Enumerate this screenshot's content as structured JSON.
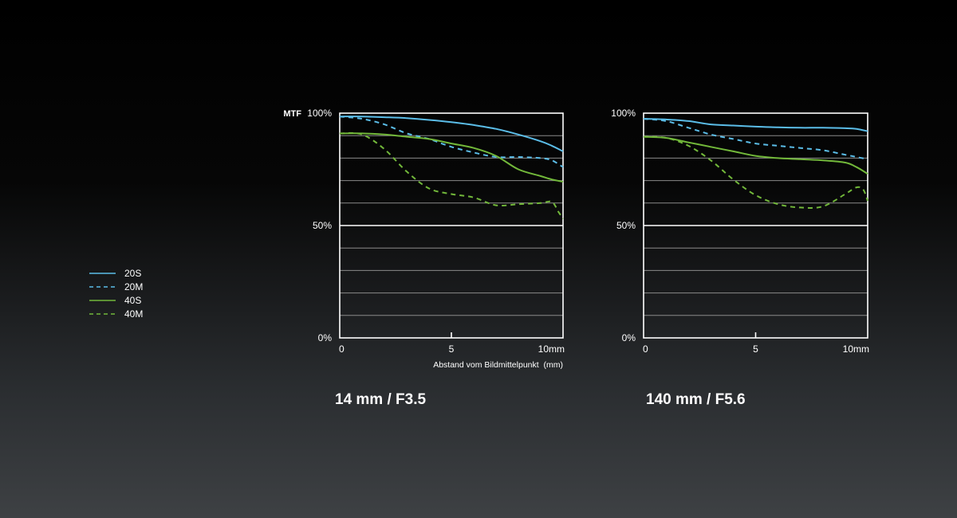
{
  "colors": {
    "sagittal_20": "#5bbde8",
    "meridional_20": "#5bbde8",
    "sagittal_40": "#72b83a",
    "meridional_40": "#72b83a",
    "grid": "#8a8a8a",
    "frame": "#ffffff"
  },
  "legend": {
    "items": [
      {
        "label": "20S",
        "series": "20S",
        "dashed": false,
        "color": "#5bbde8"
      },
      {
        "label": "20M",
        "series": "20M",
        "dashed": true,
        "color": "#5bbde8"
      },
      {
        "label": "40S",
        "series": "40S",
        "dashed": false,
        "color": "#72b83a"
      },
      {
        "label": "40M",
        "series": "40M",
        "dashed": true,
        "color": "#72b83a"
      }
    ]
  },
  "chart_data": [
    {
      "type": "line",
      "title": "14 mm / F3.5",
      "ylabel": "MTF",
      "xlabel": "Abstand vom Bildmittelpunkt  (mm)",
      "xlim": [
        0,
        10
      ],
      "ylim": [
        0,
        100
      ],
      "x_ticks": [
        {
          "value": 0,
          "label": "0"
        },
        {
          "value": 5,
          "label": "5"
        },
        {
          "value": 10,
          "label": "10mm"
        }
      ],
      "y_ticks": [
        {
          "value": 0,
          "label": "0%"
        },
        {
          "value": 50,
          "label": "50%"
        },
        {
          "value": 100,
          "label": "100%"
        }
      ],
      "grid": true,
      "series": [
        {
          "name": "20S",
          "dashed": false,
          "color": "#5bbde8",
          "x": [
            0,
            1,
            2,
            3,
            4,
            5,
            6,
            7,
            8,
            9,
            9.5,
            10
          ],
          "y": [
            98.5,
            98.5,
            98.2,
            97.8,
            97,
            96,
            94.7,
            93,
            90.5,
            87.5,
            85.5,
            83
          ]
        },
        {
          "name": "20M",
          "dashed": true,
          "color": "#5bbde8",
          "x": [
            0,
            1,
            2,
            3,
            4,
            5,
            6,
            7,
            8,
            9,
            9.5,
            10
          ],
          "y": [
            98.5,
            97.5,
            95,
            91,
            88.5,
            85,
            82.5,
            80.5,
            80.5,
            80,
            79,
            76
          ]
        },
        {
          "name": "40S",
          "dashed": false,
          "color": "#72b83a",
          "x": [
            0,
            1,
            2,
            3,
            4,
            5,
            6,
            7,
            8,
            9,
            9.5,
            10
          ],
          "y": [
            91,
            91,
            90.5,
            89.5,
            88.5,
            86.5,
            84.5,
            81,
            75,
            72,
            70.5,
            69.5
          ]
        },
        {
          "name": "40M",
          "dashed": true,
          "color": "#72b83a",
          "x": [
            0,
            1,
            2,
            3,
            4,
            5,
            6,
            7,
            8,
            9,
            9.5,
            9.8,
            10
          ],
          "y": [
            91,
            90.5,
            84,
            74,
            66.5,
            64,
            62.5,
            59,
            59.5,
            60,
            60.5,
            56,
            53
          ]
        }
      ]
    },
    {
      "type": "line",
      "title": "140 mm / F5.6",
      "ylabel": "",
      "xlabel": "",
      "xlim": [
        0,
        10
      ],
      "ylim": [
        0,
        100
      ],
      "x_ticks": [
        {
          "value": 0,
          "label": "0"
        },
        {
          "value": 5,
          "label": "5"
        },
        {
          "value": 10,
          "label": "10mm"
        }
      ],
      "y_ticks": [
        {
          "value": 0,
          "label": "0%"
        },
        {
          "value": 50,
          "label": "50%"
        },
        {
          "value": 100,
          "label": "100%"
        }
      ],
      "grid": true,
      "series": [
        {
          "name": "20S",
          "dashed": false,
          "color": "#5bbde8",
          "x": [
            0,
            1,
            2,
            3,
            4,
            5,
            6,
            7,
            8,
            9,
            9.5,
            10
          ],
          "y": [
            97.5,
            97.2,
            96.5,
            95,
            94.5,
            94,
            93.7,
            93.5,
            93.5,
            93.3,
            93,
            92
          ]
        },
        {
          "name": "20M",
          "dashed": true,
          "color": "#5bbde8",
          "x": [
            0,
            1,
            2,
            3,
            4,
            5,
            6,
            7,
            8,
            9,
            9.5,
            10
          ],
          "y": [
            97.5,
            96.5,
            93.5,
            90.5,
            88.5,
            86.5,
            85.5,
            84.5,
            83.5,
            81.5,
            80.5,
            79.5
          ]
        },
        {
          "name": "40S",
          "dashed": false,
          "color": "#72b83a",
          "x": [
            0,
            1,
            2,
            3,
            4,
            5,
            6,
            7,
            8,
            9,
            9.5,
            10
          ],
          "y": [
            89.5,
            89,
            87,
            85,
            83,
            81,
            80,
            79.5,
            79,
            78,
            76,
            73
          ]
        },
        {
          "name": "40M",
          "dashed": true,
          "color": "#72b83a",
          "x": [
            0,
            1,
            2,
            3,
            4,
            5,
            6,
            7,
            8,
            9,
            9.5,
            9.8,
            10
          ],
          "y": [
            89.5,
            89,
            85.5,
            79,
            70.5,
            63.5,
            59.5,
            58,
            58.5,
            64,
            67,
            66,
            61
          ]
        }
      ]
    }
  ]
}
